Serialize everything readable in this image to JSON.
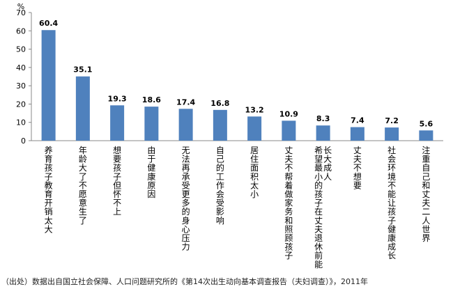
{
  "chart_data": {
    "type": "bar",
    "unit": "%",
    "categories": [
      "养育孩子教育开销太大",
      "年龄大了不愿意生了",
      "想要孩子但怀不上",
      "由于健康原因",
      "无法再承受更多的身心压力",
      "自己的工作会受影响",
      "居住面积太小",
      "丈夫不帮着做家务和照顾孩子",
      "希望最小的孩子在丈夫退休前能长大成人",
      "丈夫不想要",
      "社会环境不能让孩子健康成长",
      "注重自己和丈夫二人世界"
    ],
    "values": [
      60.4,
      35.1,
      19.3,
      18.6,
      17.4,
      16.8,
      13.2,
      10.9,
      8.3,
      7.4,
      7.2,
      5.6
    ],
    "value_labels": [
      "60.4",
      "35.1",
      "19.3",
      "18.6",
      "17.4",
      "16.8",
      "13.2",
      "10.9",
      "8.3",
      "7.4",
      "7.2",
      "5.6"
    ],
    "ylim": [
      0,
      70
    ],
    "yticks": [
      0,
      10,
      20,
      30,
      40,
      50,
      60,
      70
    ],
    "grid": false,
    "bar_color": "#4f81bd",
    "label_wrap": 14
  },
  "source_note": "（出处）数据出自国立社会保障、人口问题研究所的《第14次出生动向基本调查报告（夫妇调查）》，2011年"
}
